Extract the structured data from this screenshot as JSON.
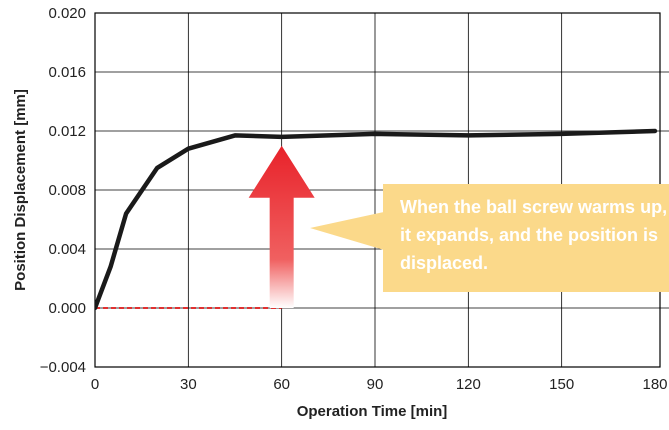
{
  "chart_data": {
    "type": "line",
    "xlabel": "Operation Time [min]",
    "ylabel": "Position Displacement [mm]",
    "xlim": [
      0,
      180
    ],
    "ylim": [
      -0.004,
      0.02
    ],
    "x_ticks": [
      "0",
      "30",
      "60",
      "90",
      "120",
      "150",
      "180"
    ],
    "y_ticks": [
      "−0.004",
      "0.000",
      "0.004",
      "0.008",
      "0.012",
      "0.016",
      "0.020"
    ],
    "grid": true,
    "series": [
      {
        "color": "#1a1a1a",
        "x": [
          0,
          5,
          10,
          20,
          30,
          45,
          60,
          90,
          120,
          150,
          180
        ],
        "y": [
          0.0,
          0.0028,
          0.0064,
          0.0095,
          0.0108,
          0.0117,
          0.0116,
          0.0118,
          0.0117,
          0.0118,
          0.012
        ]
      }
    ],
    "reference_line": {
      "y": 0.0,
      "x_from": 0,
      "x_to": 60,
      "color": "#e03030",
      "style": "dashed"
    },
    "arrow": {
      "x": 60,
      "y_from": 0.0,
      "y_to": 0.011,
      "color": "#e8222a"
    },
    "callout": {
      "lines": [
        "When the ball screw warms up,",
        "it expands, and the position is",
        "displaced."
      ],
      "fill": "#fbd98a",
      "text_color": "#ffffff"
    }
  }
}
